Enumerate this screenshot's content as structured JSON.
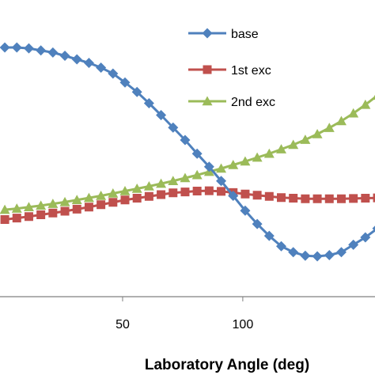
{
  "chart_data": {
    "type": "line",
    "title": "",
    "xlabel": "Laboratory Angle  (deg)",
    "ylabel": "",
    "xlim": [
      -1,
      155
    ],
    "ylim": [
      0.0,
      1.0
    ],
    "x_ticks": [
      50,
      100
    ],
    "grid": false,
    "legend_position": "top-right",
    "series": [
      {
        "name": "base",
        "color": "#4f81bd",
        "marker": "diamond",
        "x": [
          1,
          6,
          11,
          16,
          21,
          26,
          31,
          36,
          41,
          46,
          51,
          56,
          61,
          66,
          71,
          76,
          81,
          86,
          91,
          96,
          101,
          106,
          111,
          116,
          121,
          126,
          131,
          136,
          141,
          146,
          151,
          156
        ],
        "y": [
          0.84,
          0.84,
          0.837,
          0.83,
          0.823,
          0.812,
          0.8,
          0.788,
          0.772,
          0.752,
          0.722,
          0.69,
          0.652,
          0.612,
          0.57,
          0.528,
          0.482,
          0.438,
          0.39,
          0.34,
          0.29,
          0.245,
          0.205,
          0.17,
          0.15,
          0.138,
          0.136,
          0.14,
          0.15,
          0.175,
          0.2,
          0.23
        ]
      },
      {
        "name": "1st exc",
        "color": "#c0504d",
        "marker": "square",
        "x": [
          1,
          6,
          11,
          16,
          21,
          26,
          31,
          36,
          41,
          46,
          51,
          56,
          61,
          66,
          71,
          76,
          81,
          86,
          91,
          96,
          101,
          106,
          111,
          116,
          121,
          126,
          131,
          136,
          141,
          146,
          151,
          156
        ],
        "y": [
          0.26,
          0.265,
          0.27,
          0.276,
          0.282,
          0.288,
          0.295,
          0.302,
          0.31,
          0.318,
          0.326,
          0.332,
          0.338,
          0.344,
          0.35,
          0.353,
          0.356,
          0.357,
          0.355,
          0.351,
          0.346,
          0.342,
          0.338,
          0.334,
          0.332,
          0.33,
          0.33,
          0.33,
          0.33,
          0.331,
          0.332,
          0.333
        ]
      },
      {
        "name": "2nd exc",
        "color": "#9bbb59",
        "marker": "triangle",
        "x": [
          1,
          6,
          11,
          16,
          21,
          26,
          31,
          36,
          41,
          46,
          51,
          56,
          61,
          66,
          71,
          76,
          81,
          86,
          91,
          96,
          101,
          106,
          111,
          116,
          121,
          126,
          131,
          136,
          141,
          146,
          151,
          156
        ],
        "y": [
          0.293,
          0.297,
          0.302,
          0.307,
          0.313,
          0.319,
          0.326,
          0.333,
          0.34,
          0.348,
          0.356,
          0.364,
          0.372,
          0.381,
          0.39,
          0.4,
          0.41,
          0.421,
          0.432,
          0.444,
          0.456,
          0.469,
          0.482,
          0.497,
          0.512,
          0.529,
          0.548,
          0.569,
          0.592,
          0.618,
          0.647,
          0.678
        ]
      }
    ]
  }
}
